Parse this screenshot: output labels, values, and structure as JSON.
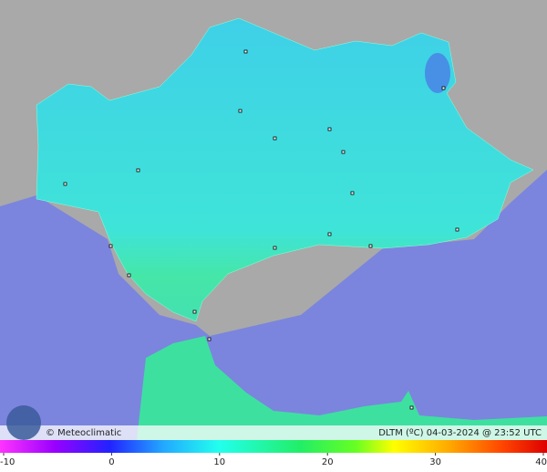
{
  "brand": "© Meteoclimatic",
  "caption": "DLTM (ºC)   04-03-2024 @ 23:52 UTC",
  "scale": {
    "min": -10,
    "max": 40,
    "ticks": [
      -10,
      0,
      10,
      20,
      30,
      40
    ]
  }
}
